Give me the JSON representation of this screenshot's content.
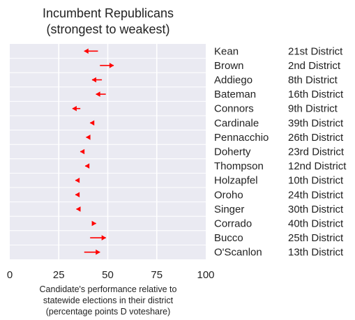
{
  "chart_data": {
    "type": "arrow",
    "title": [
      "Incumbent Republicans",
      "(strongest to weakest)"
    ],
    "xlabel": [
      "Candidate's performance relative to",
      "statewide elections in their district",
      "(percentage points D voteshare)"
    ],
    "xlim": [
      0,
      100
    ],
    "xticks": [
      0,
      25,
      50,
      75,
      100
    ],
    "grid": true,
    "arrow_color": "#ff0000",
    "rows": [
      {
        "name": "Kean",
        "district": "21st District",
        "from": 45,
        "to": 38
      },
      {
        "name": "Brown",
        "district": "2nd District",
        "from": 46,
        "to": 53
      },
      {
        "name": "Addiego",
        "district": "8th District",
        "from": 47,
        "to": 42
      },
      {
        "name": "Bateman",
        "district": "16th District",
        "from": 49,
        "to": 44
      },
      {
        "name": "Connors",
        "district": "9th District",
        "from": 36,
        "to": 32
      },
      {
        "name": "Cardinale",
        "district": "39th District",
        "from": 43,
        "to": 41
      },
      {
        "name": "Pennacchio",
        "district": "26th District",
        "from": 41,
        "to": 39
      },
      {
        "name": "Doherty",
        "district": "23rd District",
        "from": 38,
        "to": 36
      },
      {
        "name": "Thompson",
        "district": "12nd District",
        "from": 40,
        "to": 38.5
      },
      {
        "name": "Holzapfel",
        "district": "10th District",
        "from": 35,
        "to": 33.5
      },
      {
        "name": "Oroho",
        "district": "24th District",
        "from": 35,
        "to": 33.5
      },
      {
        "name": "Singer",
        "district": "30th District",
        "from": 35,
        "to": 34
      },
      {
        "name": "Corrado",
        "district": "40th District",
        "from": 42,
        "to": 44
      },
      {
        "name": "Bucco",
        "district": "25th District",
        "from": 41,
        "to": 49
      },
      {
        "name": "O'Scanlon",
        "district": "13th District",
        "from": 38,
        "to": 46
      }
    ]
  }
}
